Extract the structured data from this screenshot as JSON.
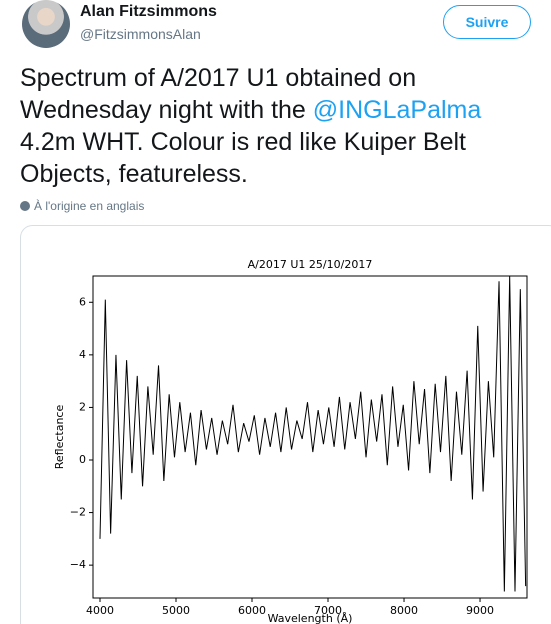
{
  "author": {
    "name": "Alan Fitzsimmons",
    "handle": "@FitzsimmonsAlan"
  },
  "follow_button": "Suivre",
  "tweet": {
    "parts": [
      "Spectrum of A/2017 U1 obtained on Wednesday night with the ",
      "@INGLaPalma",
      " 4.2m WHT. Colour is red like Kuiper Belt Objects, featureless."
    ]
  },
  "translation_note": "À l'origine en anglais",
  "chart_data": {
    "type": "line",
    "title": "A/2017 U1  25/10/2017",
    "x_label": "Wavelength (Å)",
    "y_label": "Reflectance",
    "color": "#000000",
    "x": [
      4000,
      4070,
      4140,
      4210,
      4280,
      4350,
      4420,
      4490,
      4560,
      4630,
      4700,
      4770,
      4840,
      4910,
      4980,
      5050,
      5120,
      5190,
      5260,
      5330,
      5400,
      5470,
      5540,
      5610,
      5680,
      5750,
      5820,
      5890,
      5960,
      6030,
      6100,
      6170,
      6240,
      6310,
      6380,
      6450,
      6520,
      6590,
      6660,
      6730,
      6800,
      6870,
      6940,
      7010,
      7080,
      7150,
      7220,
      7290,
      7360,
      7430,
      7500,
      7570,
      7640,
      7710,
      7780,
      7850,
      7920,
      7990,
      8060,
      8130,
      8200,
      8270,
      8340,
      8410,
      8480,
      8550,
      8620,
      8690,
      8760,
      8830,
      8900,
      8970,
      9040,
      9110,
      9180,
      9250,
      9320,
      9390,
      9460,
      9530,
      9600
    ],
    "values": [
      -3.0,
      6.1,
      -2.8,
      4.0,
      -1.5,
      3.8,
      -0.5,
      3.2,
      -1.0,
      2.8,
      0.2,
      3.6,
      -0.8,
      2.5,
      0.1,
      2.2,
      0.3,
      1.8,
      -0.2,
      1.9,
      0.4,
      1.6,
      0.2,
      1.5,
      0.6,
      2.1,
      0.3,
      1.4,
      0.7,
      1.7,
      0.2,
      1.6,
      0.5,
      1.8,
      0.3,
      2.0,
      0.4,
      1.5,
      0.8,
      2.2,
      0.3,
      1.9,
      0.6,
      2.0,
      0.5,
      2.4,
      0.4,
      2.2,
      0.8,
      2.6,
      0.1,
      2.3,
      0.7,
      2.5,
      -0.2,
      2.8,
      0.5,
      2.1,
      -0.4,
      3.0,
      0.6,
      2.7,
      -0.5,
      2.9,
      0.3,
      3.2,
      -0.8,
      2.6,
      0.2,
      3.4,
      -1.5,
      5.1,
      -1.2,
      3.0,
      0.1,
      6.8,
      -5.0,
      7.0,
      -5.0,
      6.5,
      -4.8
    ],
    "xlim": [
      3908,
      9618
    ],
    "xticks": [
      4000,
      5000,
      6000,
      7000,
      8000,
      9000
    ],
    "ylim": [
      -5.25,
      7
    ],
    "yticks": [
      {
        "value": -4,
        "label": "−4"
      },
      {
        "value": -2,
        "label": "−2"
      },
      0,
      2,
      4,
      6
    ]
  }
}
